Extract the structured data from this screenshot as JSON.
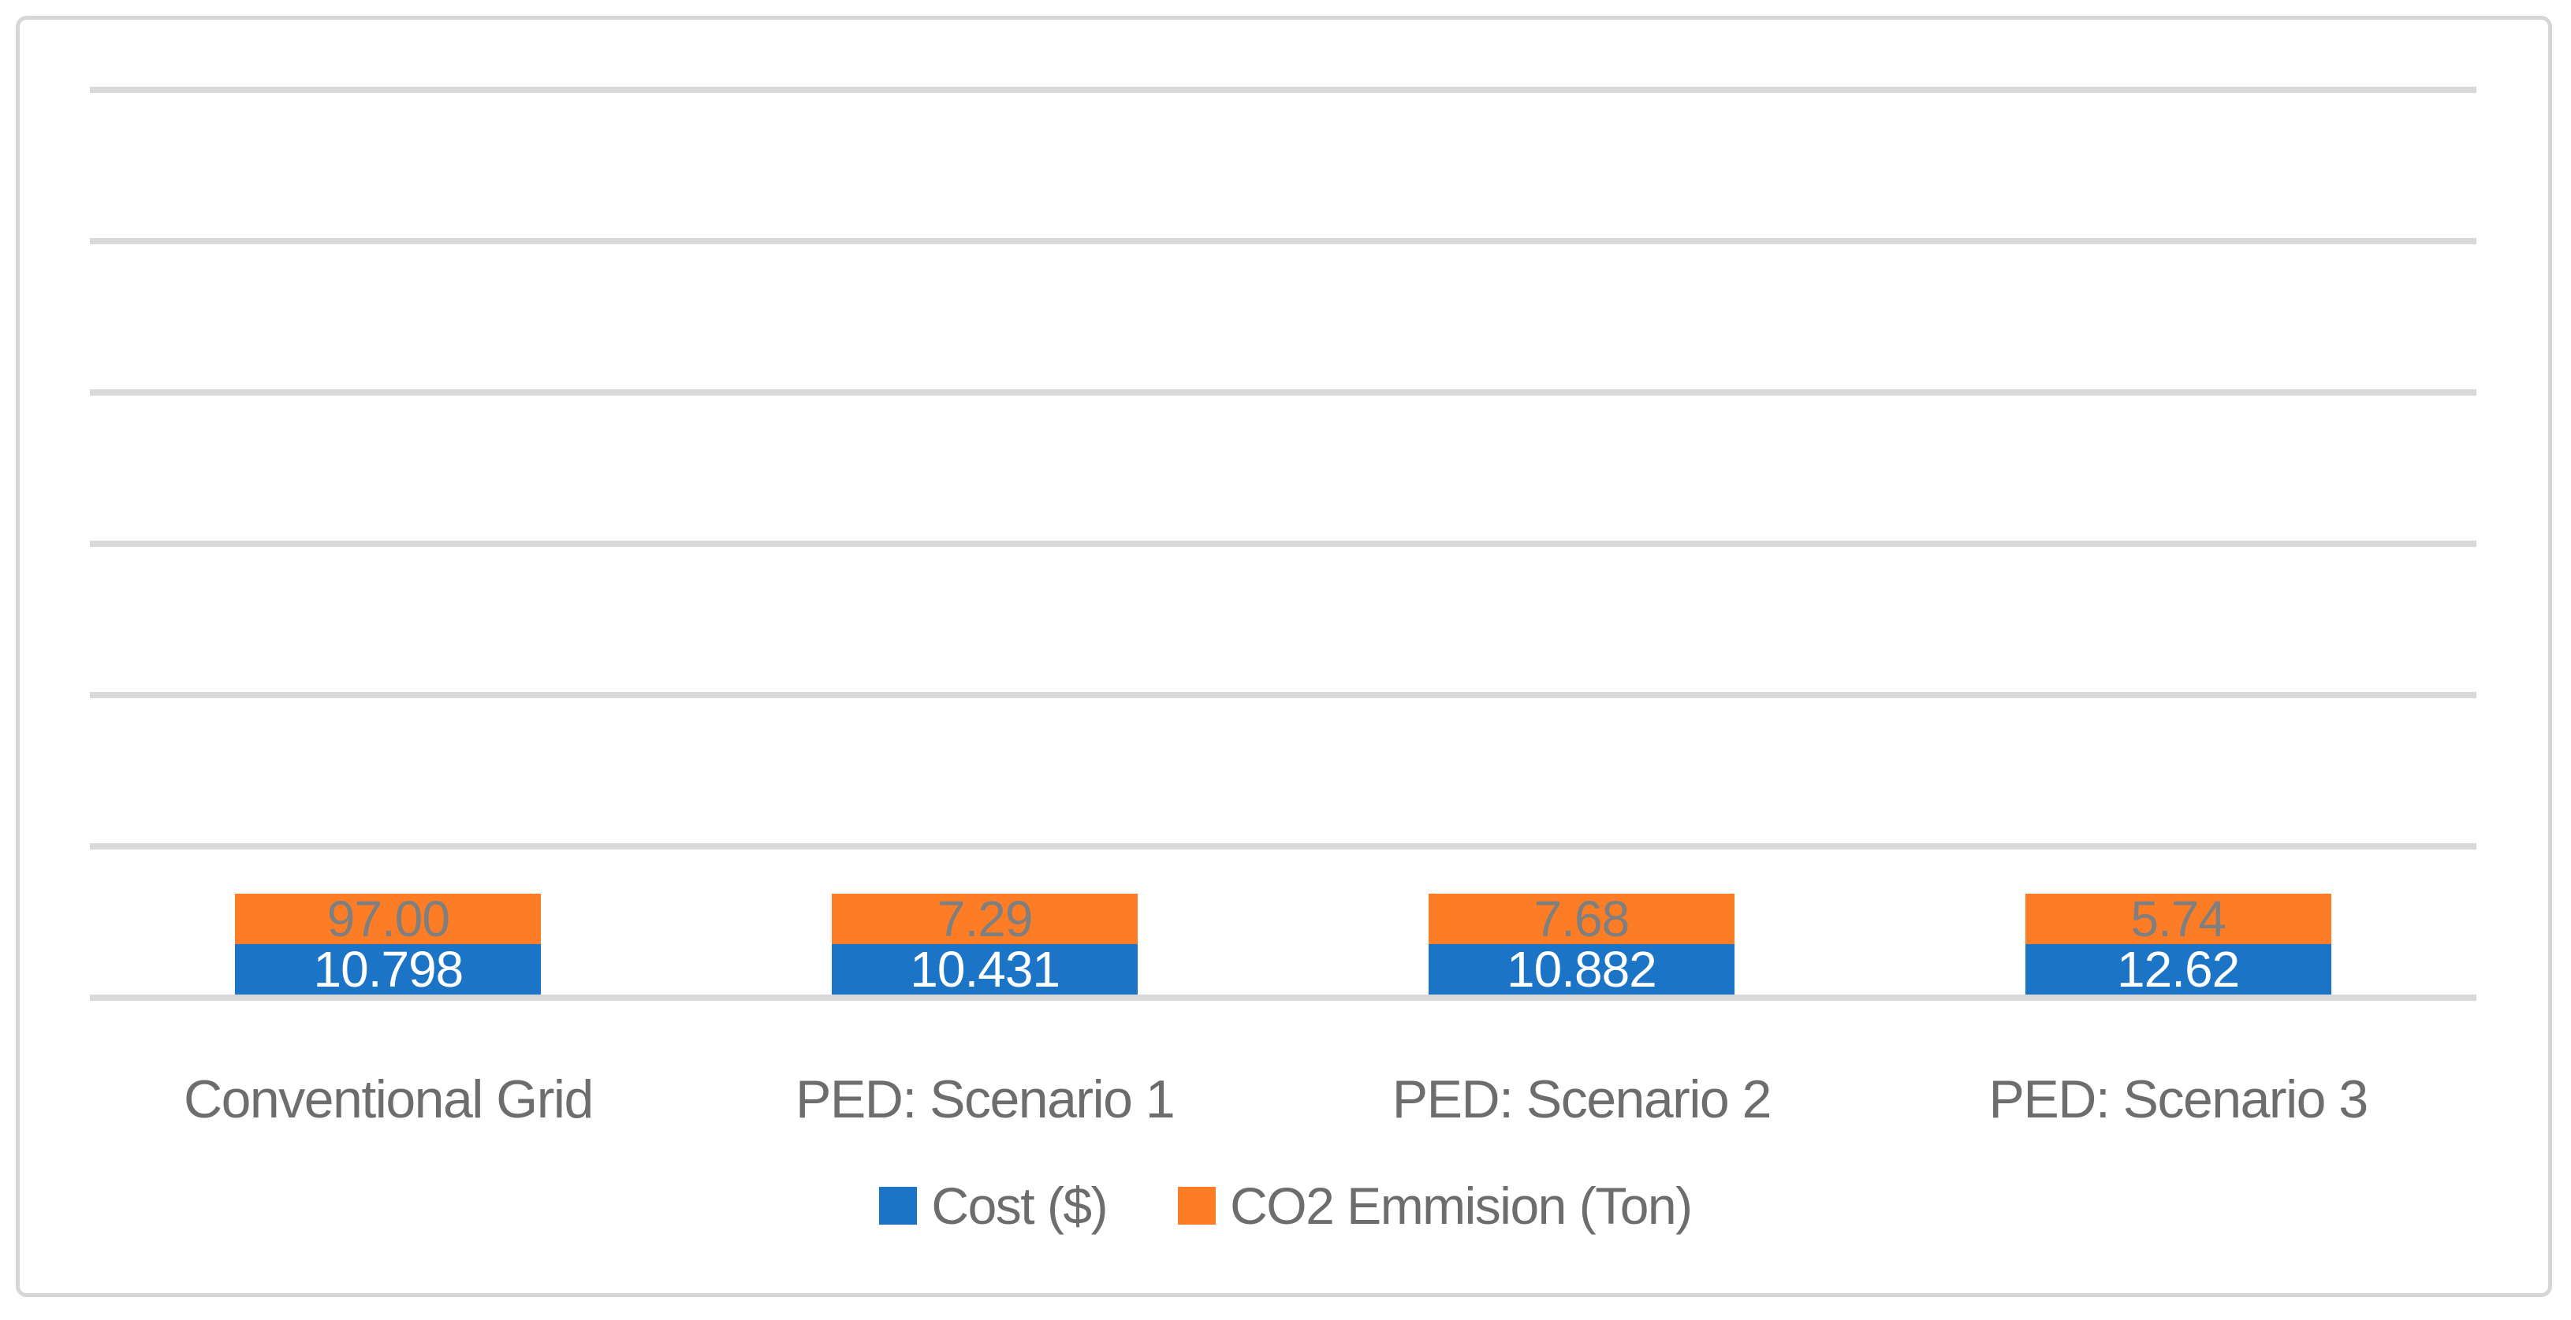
{
  "chart_data": {
    "type": "bar",
    "stacked": true,
    "title": "",
    "xlabel": "",
    "ylabel": "",
    "categories": [
      "Conventional Grid",
      "PED: Scenario 1",
      "PED: Scenario 2",
      "PED: Scenario 3"
    ],
    "series": [
      {
        "name": "Cost ($)",
        "color": "#1b74c6",
        "values": [
          10.798,
          10.431,
          10.882,
          12.62
        ],
        "data_labels": [
          "10.798",
          "10.431",
          "10.882",
          "12.62"
        ],
        "data_label_color": "#ffffff"
      },
      {
        "name": "CO2 Emmision (Ton)",
        "color": "#fc7d26",
        "values": [
          97.0,
          7.29,
          7.68,
          5.74
        ],
        "data_labels": [
          "97.00",
          "7.29",
          "7.68",
          "5.74"
        ],
        "data_label_color": "#7f7f7f"
      }
    ],
    "ylim": [
      0,
      120
    ],
    "yticks": [
      0,
      20,
      40,
      60,
      80,
      100,
      120
    ],
    "ytick_labels_visible": false,
    "grid": "horizontal",
    "gridline_color": "#d9d9d9",
    "legend_position": "bottom-center",
    "axis_text_color": "#6d6d6d",
    "figure_border_color": "#d6d6d6",
    "background_color": "#ffffff"
  }
}
